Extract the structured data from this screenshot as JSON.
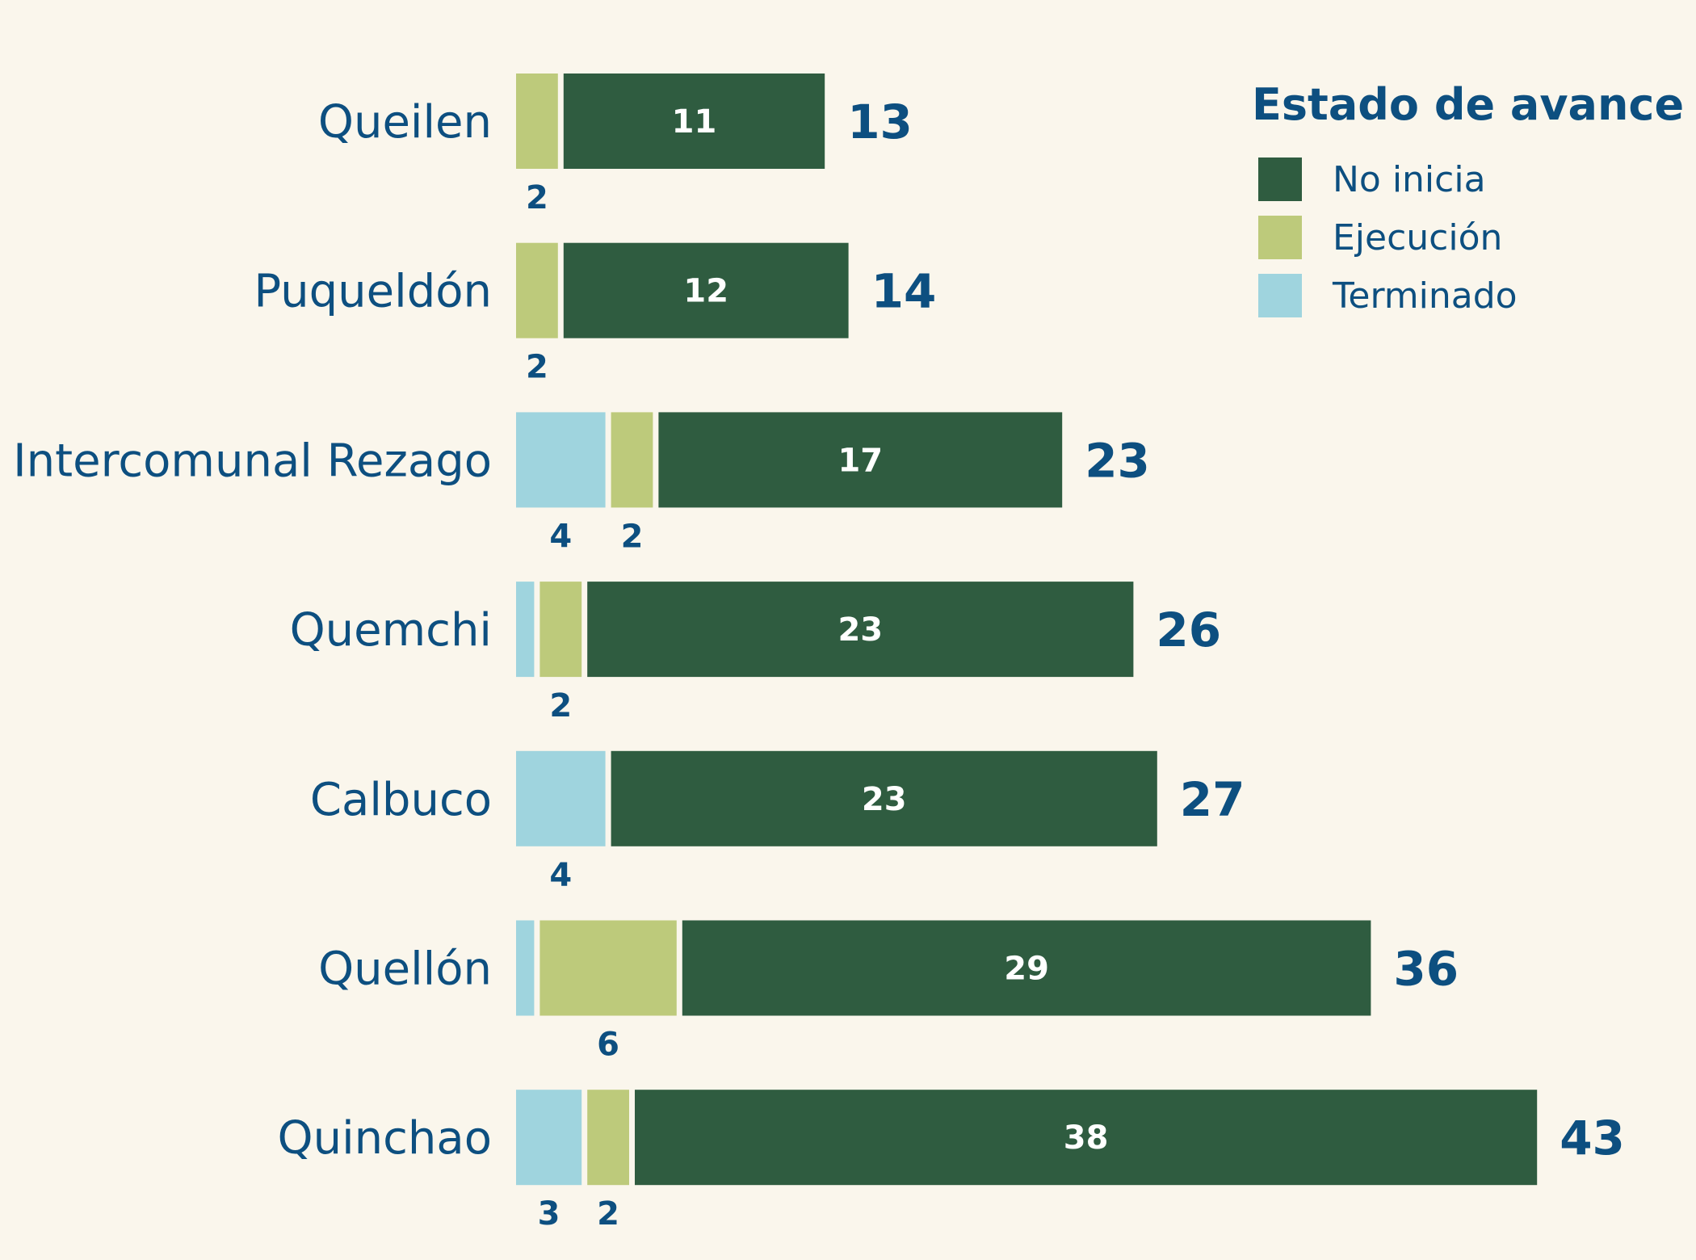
{
  "chart_data": {
    "type": "bar",
    "orientation": "horizontal",
    "stacked": true,
    "categories": [
      "Queilen",
      "Puqueldón",
      "Intercomunal Rezago",
      "Quemchi",
      "Calbuco",
      "Quellón",
      "Quinchao"
    ],
    "series": [
      {
        "name": "Terminado",
        "color": "#9fd4de",
        "values": [
          0,
          0,
          4,
          1,
          4,
          1,
          3
        ]
      },
      {
        "name": "Ejecución",
        "color": "#bdca7b",
        "values": [
          2,
          2,
          2,
          2,
          0,
          6,
          2
        ]
      },
      {
        "name": "No inicia",
        "color": "#2f5c40",
        "values": [
          11,
          12,
          17,
          23,
          23,
          29,
          38
        ]
      }
    ],
    "totals": [
      13,
      14,
      23,
      26,
      27,
      36,
      43
    ],
    "legend": {
      "title": "Estado de avance",
      "items": [
        "No inicia",
        "Ejecución",
        "Terminado"
      ],
      "placement": "top-right"
    },
    "grid": false,
    "xlim": [
      0,
      43
    ]
  }
}
